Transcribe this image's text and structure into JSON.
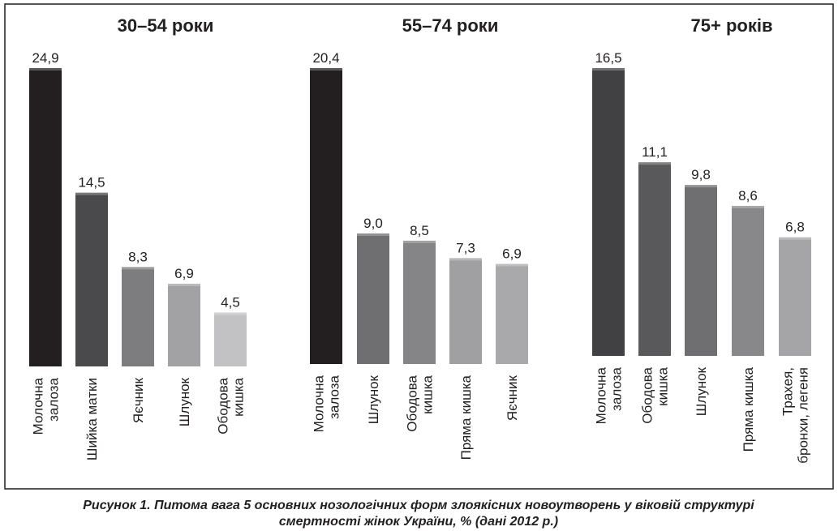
{
  "charts": [
    {
      "type": "bar",
      "title": "30–54 роки",
      "categories": [
        [
          "Молочна",
          "залоза"
        ],
        [
          "Шийка матки"
        ],
        [
          "Яєчник"
        ],
        [
          "Шлунок"
        ],
        [
          "Ободова",
          "кишка"
        ]
      ],
      "values": [
        24.9,
        14.5,
        8.3,
        6.9,
        4.5
      ],
      "value_labels": [
        "24,9",
        "14,5",
        "8,3",
        "6,9",
        "4,5"
      ],
      "colors": [
        "#231f20",
        "#4a4a4c",
        "#7d7d7f",
        "#a2a2a4",
        "#c2c2c4"
      ]
    },
    {
      "type": "bar",
      "title": "55–74 роки",
      "categories": [
        [
          "Молочна",
          "залоза"
        ],
        [
          "Шлунок"
        ],
        [
          "Ободова",
          "кишка"
        ],
        [
          "Пряма кишка"
        ],
        [
          "Яєчник"
        ]
      ],
      "values": [
        20.4,
        9.0,
        8.5,
        7.3,
        6.9
      ],
      "value_labels": [
        "20,4",
        "9,0",
        "8,5",
        "7,3",
        "6,9"
      ],
      "colors": [
        "#231f20",
        "#6f6f71",
        "#858587",
        "#a0a0a2",
        "#a9a9ab"
      ]
    },
    {
      "type": "bar",
      "title": "75+ років",
      "categories": [
        [
          "Молочна",
          "залоза"
        ],
        [
          "Ободова",
          "кишка"
        ],
        [
          "Шлунок"
        ],
        [
          "Пряма кишка"
        ],
        [
          "Трахея,",
          "бронхи, легеня"
        ]
      ],
      "values": [
        16.5,
        11.1,
        9.8,
        8.6,
        6.8
      ],
      "value_labels": [
        "16,5",
        "11,1",
        "9,8",
        "8,6",
        "6,8"
      ],
      "colors": [
        "#414143",
        "#59595b",
        "#6f6f71",
        "#88888a",
        "#a5a5a7"
      ]
    }
  ],
  "caption": [
    "Рисунок 1. Питома вага 5 основних нозологічних форм злоякісних новоутворень у віковій структурі",
    "смертності жінок України, % (дані 2012 р.)"
  ]
}
